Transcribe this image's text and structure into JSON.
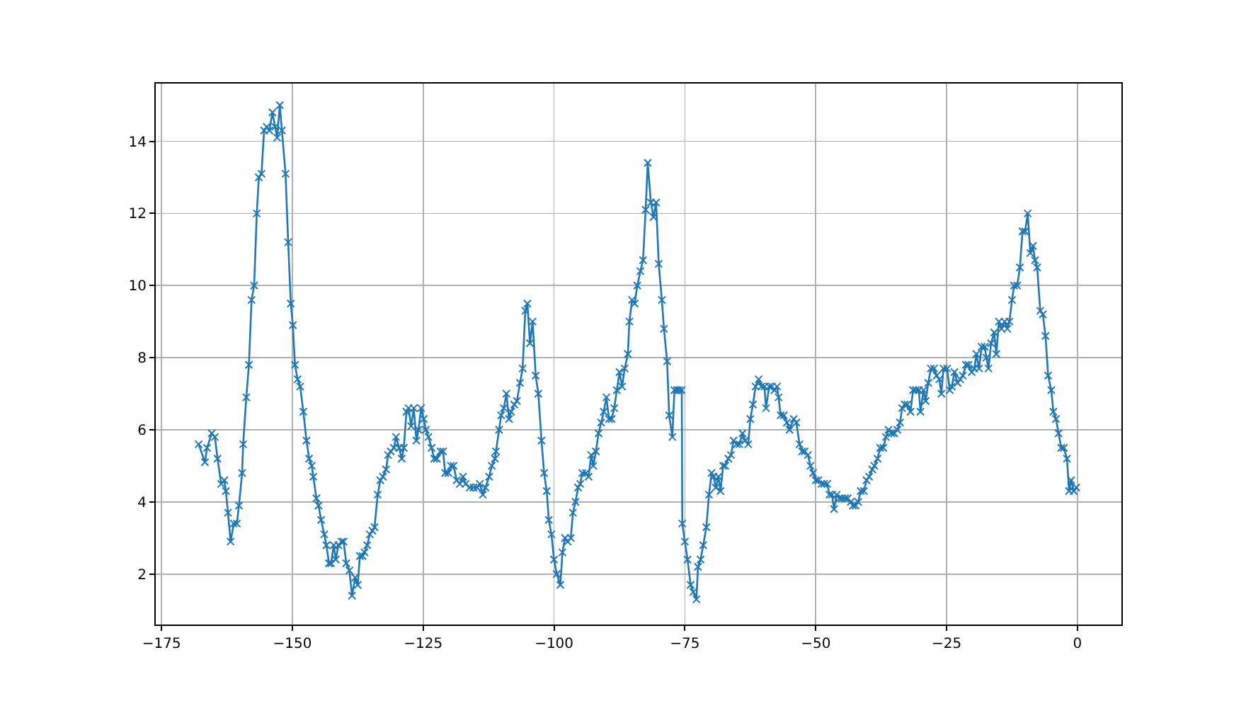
{
  "chart_data": {
    "type": "line",
    "marker": "cross",
    "line_style": "solid",
    "grid": true,
    "xlim": [
      -176.1,
      8.4
    ],
    "ylim": [
      0.6,
      15.6
    ],
    "xticks": [
      -175,
      -150,
      -125,
      -100,
      -75,
      -50,
      -25,
      0
    ],
    "yticks": [
      2,
      4,
      6,
      8,
      10,
      12,
      14
    ],
    "series": [
      {
        "color": "#1f77b4",
        "x": [
          -167.9,
          -166.7,
          -166.3,
          -165.4,
          -164.8,
          -164.3,
          -163.6,
          -163.0,
          -162.7,
          -162.3,
          -161.8,
          -161.2,
          -160.6,
          -160.2,
          -159.6,
          -159.4,
          -158.8,
          -158.3,
          -157.8,
          -157.3,
          -156.8,
          -156.4,
          -155.9,
          -155.4,
          -154.9,
          -154.4,
          -153.8,
          -153.3,
          -152.9,
          -152.4,
          -152.0,
          -151.3,
          -150.8,
          -150.3,
          -149.9,
          -149.5,
          -149.0,
          -148.5,
          -147.9,
          -147.3,
          -146.8,
          -146.3,
          -146.0,
          -145.4,
          -145.0,
          -144.5,
          -143.9,
          -143.5,
          -143.0,
          -142.6,
          -142.1,
          -141.7,
          -141.2,
          -140.6,
          -140.2,
          -139.7,
          -139.1,
          -138.6,
          -138.0,
          -137.5,
          -137.1,
          -136.6,
          -136.2,
          -135.7,
          -135.2,
          -134.7,
          -134.3,
          -133.7,
          -133.2,
          -132.7,
          -132.1,
          -131.7,
          -131.2,
          -130.6,
          -130.2,
          -129.6,
          -129.1,
          -128.7,
          -128.2,
          -127.8,
          -127.3,
          -126.8,
          -126.3,
          -125.9,
          -125.4,
          -124.9,
          -124.5,
          -124.0,
          -123.4,
          -122.9,
          -122.4,
          -121.7,
          -121.2,
          -120.8,
          -120.2,
          -119.7,
          -119.2,
          -118.6,
          -118.0,
          -117.4,
          -116.9,
          -116.1,
          -115.4,
          -114.7,
          -114.2,
          -113.6,
          -113.1,
          -112.4,
          -111.9,
          -111.3,
          -111.1,
          -110.5,
          -110.1,
          -109.6,
          -109.1,
          -108.6,
          -108.2,
          -107.6,
          -107.1,
          -106.5,
          -106.0,
          -105.5,
          -105.1,
          -104.6,
          -104.1,
          -103.5,
          -103.0,
          -102.4,
          -101.9,
          -101.4,
          -101.0,
          -100.5,
          -100.0,
          -99.5,
          -98.8,
          -98.4,
          -97.9,
          -97.4,
          -96.8,
          -96.4,
          -95.9,
          -95.4,
          -95.0,
          -94.6,
          -93.9,
          -93.4,
          -92.9,
          -92.5,
          -92.0,
          -91.5,
          -91.0,
          -90.5,
          -90.0,
          -89.5,
          -89.0,
          -88.5,
          -88.0,
          -87.5,
          -87.0,
          -86.5,
          -85.9,
          -85.6,
          -85.1,
          -84.6,
          -84.1,
          -83.5,
          -83.0,
          -82.5,
          -82.1,
          -81.5,
          -81.0,
          -80.5,
          -80.0,
          -79.4,
          -79.0,
          -78.4,
          -78.0,
          -77.4,
          -77.0,
          -76.5,
          -76.1,
          -75.6,
          -75.5,
          -75.0,
          -74.5,
          -73.9,
          -73.4,
          -72.8,
          -72.5,
          -72.0,
          -71.5,
          -70.9,
          -70.4,
          -69.9,
          -69.5,
          -69.1,
          -68.6,
          -68.2,
          -67.7,
          -67.3,
          -66.7,
          -66.2,
          -65.7,
          -65.1,
          -64.6,
          -64.0,
          -63.5,
          -62.9,
          -62.5,
          -62.0,
          -61.5,
          -60.9,
          -60.4,
          -59.8,
          -59.5,
          -58.9,
          -58.4,
          -57.9,
          -57.4,
          -57.1,
          -56.7,
          -56.1,
          -55.5,
          -55.0,
          -54.2,
          -53.7,
          -53.1,
          -52.6,
          -52.1,
          -51.5,
          -51.0,
          -50.5,
          -50.0,
          -49.5,
          -48.9,
          -48.4,
          -47.8,
          -47.4,
          -46.9,
          -46.5,
          -46.0,
          -45.5,
          -45.0,
          -44.4,
          -43.9,
          -43.3,
          -42.9,
          -42.4,
          -41.9,
          -41.4,
          -40.8,
          -40.3,
          -39.8,
          -39.2,
          -38.8,
          -38.2,
          -37.7,
          -37.1,
          -36.6,
          -36.1,
          -35.5,
          -35.0,
          -34.4,
          -33.9,
          -33.5,
          -33.0,
          -32.5,
          -31.9,
          -31.4,
          -30.9,
          -30.3,
          -30.0,
          -29.4,
          -29.0,
          -28.5,
          -28.0,
          -27.4,
          -26.9,
          -26.4,
          -26.0,
          -25.6,
          -24.9,
          -24.4,
          -24.0,
          -23.5,
          -22.9,
          -22.4,
          -21.9,
          -21.3,
          -20.8,
          -20.2,
          -19.7,
          -19.3,
          -18.8,
          -18.3,
          -17.7,
          -17.4,
          -17.0,
          -16.5,
          -15.9,
          -15.5,
          -15.0,
          -14.5,
          -13.9,
          -13.4,
          -13.0,
          -12.5,
          -12.1,
          -11.5,
          -11.0,
          -10.5,
          -10.0,
          -9.5,
          -9.0,
          -8.5,
          -8.1,
          -7.7,
          -7.1,
          -6.6,
          -6.1,
          -5.6,
          -5.0,
          -4.6,
          -4.1,
          -3.6,
          -3.1,
          -2.6,
          -2.0,
          -1.6,
          -1.2,
          -0.7,
          -0.2
        ],
        "values": [
          5.6,
          5.1,
          5.5,
          5.9,
          5.8,
          5.2,
          4.5,
          4.6,
          4.3,
          3.7,
          2.9,
          3.4,
          3.4,
          3.9,
          4.8,
          5.6,
          6.9,
          7.8,
          9.6,
          10.0,
          12.0,
          13.0,
          13.1,
          14.3,
          14.4,
          14.3,
          14.8,
          14.4,
          14.1,
          15.0,
          14.3,
          13.1,
          11.2,
          9.5,
          8.9,
          7.8,
          7.4,
          7.2,
          6.5,
          5.7,
          5.2,
          5.0,
          4.7,
          4.1,
          3.9,
          3.5,
          3.1,
          2.8,
          2.3,
          2.3,
          2.8,
          2.4,
          2.8,
          2.9,
          2.9,
          2.3,
          2.1,
          1.4,
          1.9,
          1.7,
          2.5,
          2.5,
          2.6,
          2.8,
          3.1,
          3.2,
          3.3,
          4.2,
          4.6,
          4.7,
          4.9,
          5.3,
          5.4,
          5.5,
          5.8,
          5.5,
          5.2,
          5.5,
          6.5,
          6.6,
          6.1,
          6.6,
          5.7,
          6.0,
          6.6,
          6.3,
          6.0,
          5.8,
          5.5,
          5.2,
          5.2,
          5.4,
          5.4,
          4.8,
          4.8,
          5.0,
          5.0,
          4.6,
          4.5,
          4.7,
          4.5,
          4.4,
          4.4,
          4.4,
          4.5,
          4.2,
          4.4,
          4.7,
          5.0,
          5.2,
          5.4,
          6.0,
          6.4,
          6.6,
          7.0,
          6.3,
          6.5,
          6.7,
          6.8,
          7.3,
          7.7,
          9.3,
          9.5,
          8.4,
          9.0,
          7.5,
          7.0,
          5.7,
          4.8,
          4.3,
          3.5,
          3.1,
          2.4,
          2.0,
          1.7,
          2.6,
          3.0,
          2.9,
          3.0,
          3.7,
          4.0,
          4.4,
          4.5,
          4.8,
          4.8,
          4.7,
          5.3,
          5.0,
          5.4,
          5.9,
          6.2,
          6.5,
          6.9,
          6.3,
          6.3,
          6.6,
          7.1,
          7.6,
          7.2,
          7.7,
          8.1,
          9.0,
          9.6,
          9.5,
          10.0,
          10.4,
          10.7,
          12.1,
          13.4,
          12.3,
          11.9,
          12.3,
          10.6,
          9.6,
          8.8,
          7.9,
          6.4,
          5.8,
          7.1,
          7.1,
          7.1,
          7.1,
          3.4,
          2.9,
          2.4,
          1.7,
          1.5,
          1.3,
          2.2,
          2.4,
          2.8,
          3.3,
          4.2,
          4.8,
          4.7,
          4.4,
          4.7,
          4.3,
          5.0,
          5.0,
          5.2,
          5.3,
          5.7,
          5.6,
          5.6,
          5.9,
          5.7,
          5.6,
          6.3,
          6.7,
          7.2,
          7.4,
          7.2,
          7.2,
          6.6,
          7.2,
          7.2,
          7.1,
          7.2,
          6.9,
          6.4,
          6.4,
          6.2,
          6.0,
          6.3,
          6.2,
          5.6,
          5.4,
          5.4,
          5.3,
          5.0,
          4.8,
          4.6,
          4.6,
          4.5,
          4.5,
          4.5,
          4.2,
          4.2,
          3.8,
          4.2,
          4.1,
          4.1,
          4.1,
          4.1,
          4.0,
          3.9,
          3.9,
          4.0,
          4.3,
          4.3,
          4.6,
          4.7,
          4.9,
          5.0,
          5.2,
          5.5,
          5.5,
          5.8,
          6.0,
          5.9,
          5.9,
          6.0,
          6.2,
          6.6,
          6.7,
          6.7,
          6.5,
          7.1,
          7.1,
          7.1,
          6.5,
          7.1,
          6.8,
          7.3,
          7.7,
          7.7,
          7.5,
          7.4,
          7.0,
          7.7,
          7.7,
          7.1,
          7.2,
          7.6,
          7.3,
          7.4,
          7.5,
          7.8,
          7.8,
          7.6,
          7.7,
          8.1,
          7.7,
          8.3,
          8.3,
          8.0,
          7.7,
          8.4,
          8.7,
          8.1,
          9.0,
          8.8,
          9.0,
          8.8,
          9.0,
          9.6,
          10.0,
          10.0,
          10.5,
          11.5,
          11.5,
          12.0,
          10.9,
          11.1,
          10.7,
          10.5,
          9.3,
          9.2,
          8.6,
          7.5,
          7.1,
          6.5,
          6.3,
          5.9,
          5.5,
          5.5,
          5.2,
          4.3,
          4.6,
          4.3,
          4.4
        ]
      }
    ]
  }
}
